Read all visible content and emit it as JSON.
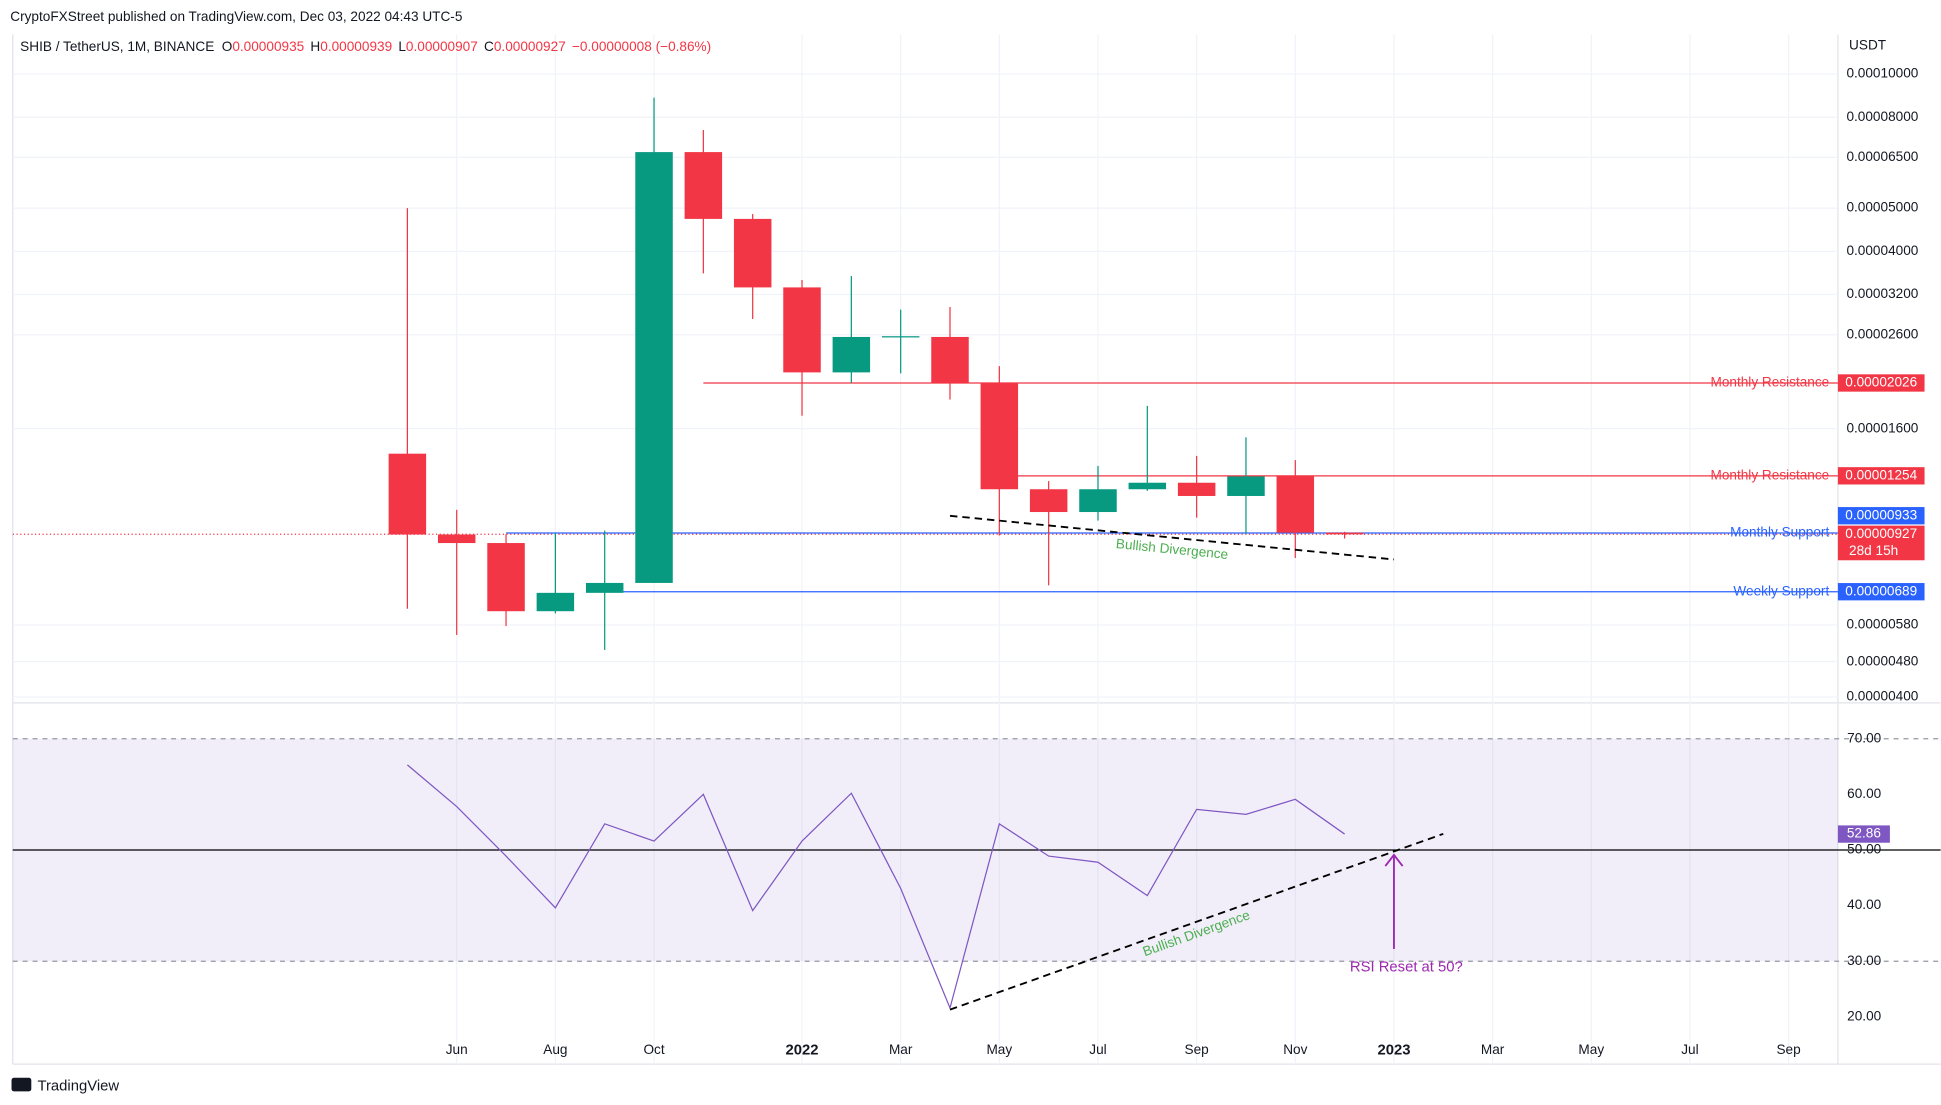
{
  "page": {
    "published": "CryptoFXStreet published on TradingView.com, Dec 03, 2022 04:43 UTC-5",
    "brand": "TradingView"
  },
  "chart_data": [
    {
      "type": "candlestick",
      "legend": {
        "symbol": "SHIB / TetherUS, 1M, BINANCE",
        "items": [
          {
            "key": "O",
            "value": "0.00000935"
          },
          {
            "key": "H",
            "value": "0.00000939"
          },
          {
            "key": "L",
            "value": "0.00000907"
          },
          {
            "key": "C",
            "value": "0.00000927"
          }
        ],
        "change": "−0.00000008 (−0.86%)"
      },
      "axis_unit": "USDT",
      "x": [
        "2021-05",
        "2021-06",
        "2021-07",
        "2021-08",
        "2021-09",
        "2021-10",
        "2021-11",
        "2021-12",
        "2022-01",
        "2022-02",
        "2022-03",
        "2022-04",
        "2022-05",
        "2022-06",
        "2022-07",
        "2022-08",
        "2022-09",
        "2022-10",
        "2022-11",
        "2022-12"
      ],
      "open": [
        1.406e-05,
        9.26e-06,
        8.86e-06,
        6.23e-06,
        6.85e-06,
        7.21e-06,
        6.68e-05,
        4.73e-05,
        3.32e-05,
        2.14e-05,
        2.57e-05,
        2.57e-05,
        2.03e-05,
        1.17e-05,
        1.04e-05,
        1.17e-05,
        1.21e-05,
        1.13e-05,
        1.25e-05,
        9.35e-06
      ],
      "high": [
        5e-05,
        1.052e-05,
        9.27e-06,
        9.33e-06,
        9.45e-06,
        8.85e-05,
        7.49e-05,
        4.85e-05,
        3.45e-05,
        3.52e-05,
        2.96e-05,
        3e-05,
        2.21e-05,
        1.22e-05,
        1.32e-05,
        1.8e-05,
        1.39e-05,
        1.53e-05,
        1.36e-05,
        9.39e-06
      ],
      "low": [
        6.31e-06,
        5.51e-06,
        5.77e-06,
        6.16e-06,
        5.1e-06,
        7.21e-06,
        3.57e-05,
        2.82e-05,
        1.71e-05,
        2.03e-05,
        2.13e-05,
        1.86e-05,
        9.21e-06,
        7.12e-06,
        9.95e-06,
        1.16e-05,
        1.01e-05,
        9.3e-06,
        8.2e-06,
        9.07e-06
      ],
      "close": [
        9.26e-06,
        8.86e-06,
        6.23e-06,
        6.85e-06,
        7.21e-06,
        6.68e-05,
        4.73e-05,
        3.32e-05,
        2.14e-05,
        2.57e-05,
        2.58e-05,
        2.03e-05,
        1.17e-05,
        1.04e-05,
        1.17e-05,
        1.21e-05,
        1.13e-05,
        1.25e-05,
        9.35e-06,
        9.27e-06
      ],
      "up_color": "#089981",
      "down_color": "#f23645",
      "last_label": "0.00000927",
      "countdown": "28d 15h",
      "log_scale": true,
      "xlim": [
        "2020-09",
        "2023-10"
      ],
      "xticks": [
        {
          "value": "2021-06",
          "label": "Jun"
        },
        {
          "value": "2021-08",
          "label": "Aug"
        },
        {
          "value": "2021-10",
          "label": "Oct"
        },
        {
          "value": "2022-01",
          "label": "2022"
        },
        {
          "value": "2022-03",
          "label": "Mar"
        },
        {
          "value": "2022-05",
          "label": "May"
        },
        {
          "value": "2022-07",
          "label": "Jul"
        },
        {
          "value": "2022-09",
          "label": "Sep"
        },
        {
          "value": "2022-11",
          "label": "Nov"
        },
        {
          "value": "2023-01",
          "label": "2023"
        },
        {
          "value": "2023-03",
          "label": "Mar"
        },
        {
          "value": "2023-05",
          "label": "May"
        },
        {
          "value": "2023-07",
          "label": "Jul"
        },
        {
          "value": "2023-09",
          "label": "Sep"
        }
      ],
      "ylim": [
        3.88e-06,
        0.000121
      ],
      "yticks": [
        {
          "value": 0.0001,
          "label": "0.00010000"
        },
        {
          "value": 8e-05,
          "label": "0.00008000"
        },
        {
          "value": 6.5e-05,
          "label": "0.00006500"
        },
        {
          "value": 5e-05,
          "label": "0.00005000"
        },
        {
          "value": 4e-05,
          "label": "0.00004000"
        },
        {
          "value": 3.2e-05,
          "label": "0.00003200"
        },
        {
          "value": 2.6e-05,
          "label": "0.00002600"
        },
        {
          "value": 1.6e-05,
          "label": "0.00001600"
        },
        {
          "value": 5.8e-06,
          "label": "0.00000580"
        },
        {
          "value": 4.8e-06,
          "label": "0.00000480"
        },
        {
          "value": 4e-06,
          "label": "0.00000400"
        }
      ],
      "grid": true,
      "levels": [
        {
          "name": "Monthly Resistance",
          "value": 2.026e-05,
          "label": "0.00002026",
          "color": "#f23645",
          "from": "2021-11"
        },
        {
          "name": "Monthly Resistance",
          "value": 1.254e-05,
          "label": "0.00001254",
          "color": "#f23645",
          "from": "2022-05"
        },
        {
          "name": "Monthly Support",
          "value": 9.33e-06,
          "label": "0.00000933",
          "color": "#2962ff",
          "from": "2021-07"
        },
        {
          "name": "Weekly Support",
          "value": 6.89e-06,
          "label": "0.00000689",
          "color": "#2962ff",
          "from": "2021-09"
        }
      ],
      "trendlines": [
        {
          "name": "Bullish Divergence",
          "color": "#4caf50",
          "points": [
            [
              "2022-04",
              1.02e-05
            ],
            [
              "2023-01",
              8.14e-06
            ]
          ]
        }
      ]
    },
    {
      "type": "line",
      "name": "RSI",
      "color": "#7e57c2",
      "x": [
        "2021-05",
        "2021-06",
        "2021-07",
        "2021-08",
        "2021-09",
        "2021-10",
        "2021-11",
        "2021-12",
        "2022-01",
        "2022-02",
        "2022-03",
        "2022-04",
        "2022-05",
        "2022-06",
        "2022-07",
        "2022-08",
        "2022-09",
        "2022-10",
        "2022-11",
        "2022-12"
      ],
      "values": [
        65.3,
        57.8,
        48.9,
        39.6,
        54.7,
        51.6,
        60,
        39.1,
        51.6,
        60.2,
        43.1,
        21.6,
        54.7,
        48.9,
        47.8,
        41.8,
        57.3,
        56.4,
        59.1,
        52.86
      ],
      "ylim": [
        11.5,
        76
      ],
      "yticks": [
        {
          "value": 20,
          "label": "20.00"
        },
        {
          "value": 30,
          "label": "30.00"
        },
        {
          "value": 40,
          "label": "40.00"
        },
        {
          "value": 50,
          "label": "50.00"
        },
        {
          "value": 60,
          "label": "60.00"
        },
        {
          "value": 70,
          "label": "70.00"
        }
      ],
      "band": [
        30,
        70
      ],
      "midline": 50,
      "trendlines": [
        {
          "name": "Bullish Divergence",
          "color": "#4caf50",
          "points": [
            [
              "2022-04",
              21.3
            ],
            [
              "2023-02",
              52.9
            ]
          ]
        }
      ],
      "annotation": {
        "text": "RSI Reset at 50?",
        "x": "2023-01",
        "value": 50,
        "color": "#9c27b0"
      }
    }
  ]
}
